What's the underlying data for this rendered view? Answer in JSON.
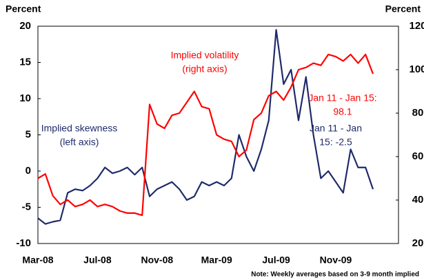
{
  "chart_data": {
    "type": "line",
    "y_label": "Percent",
    "y2_label": "Percent",
    "categories": [
      "Mar-08",
      null,
      null,
      null,
      null,
      null,
      null,
      null,
      "Jul-08",
      null,
      null,
      null,
      null,
      null,
      null,
      null,
      "Nov-08",
      null,
      null,
      null,
      null,
      null,
      null,
      null,
      "Mar-09",
      null,
      null,
      null,
      null,
      null,
      null,
      null,
      "Jul-09",
      null,
      null,
      null,
      null,
      null,
      null,
      null,
      "Nov-09",
      null,
      null,
      null,
      null,
      null
    ],
    "series": [
      {
        "name": "Implied skewness",
        "color": "#1f2a6b",
        "axis": "y",
        "values": [
          -6.5,
          -7.3,
          -7,
          -6.8,
          -3,
          -2.5,
          -2.7,
          -2,
          -1,
          0.5,
          -0.3,
          0,
          0.5,
          -0.5,
          0.5,
          -3.5,
          -2.5,
          -2,
          -1.5,
          -2.5,
          -4,
          -3.5,
          -1.5,
          -2,
          -1.5,
          -2,
          -1,
          5,
          2,
          0,
          3,
          7,
          19.5,
          12,
          14,
          7,
          13,
          5,
          -1,
          0,
          -1.5,
          -3,
          3,
          0.5,
          0.5,
          -2.5
        ]
      },
      {
        "name": "Implied volatility",
        "color": "#ff0000",
        "axis": "y2",
        "values": [
          50,
          52,
          42,
          38,
          40,
          37,
          38,
          40,
          37,
          38,
          37,
          35,
          34,
          34,
          33,
          84,
          75,
          73,
          79,
          80,
          85,
          90,
          83,
          82,
          70,
          68,
          67,
          60,
          63,
          77,
          80,
          88,
          90,
          86,
          92,
          100,
          101,
          103,
          102,
          107,
          106,
          104,
          107,
          103,
          107,
          98.1
        ]
      }
    ],
    "ylim": [
      -10,
      20
    ],
    "yticks": [
      -10,
      -5,
      0,
      5,
      10,
      15,
      20
    ],
    "y2lim": [
      20,
      120
    ],
    "y2ticks": [
      20,
      40,
      60,
      80,
      100,
      120
    ],
    "annotations": [
      {
        "lines": [
          "Implied volatility",
          "(right axis)"
        ],
        "color": "#ff0000"
      },
      {
        "lines": [
          "Implied skewness",
          "(left axis)"
        ],
        "color": "#1f2a6b"
      },
      {
        "lines": [
          "Jan 11 - Jan 15:",
          "98.1"
        ],
        "color": "#ff0000"
      },
      {
        "lines": [
          "Jan 11 - Jan",
          "15:   -2.5"
        ],
        "color": "#1f2a6b"
      }
    ],
    "note": "Note: Weekly averages based on 3-9 month implied"
  }
}
